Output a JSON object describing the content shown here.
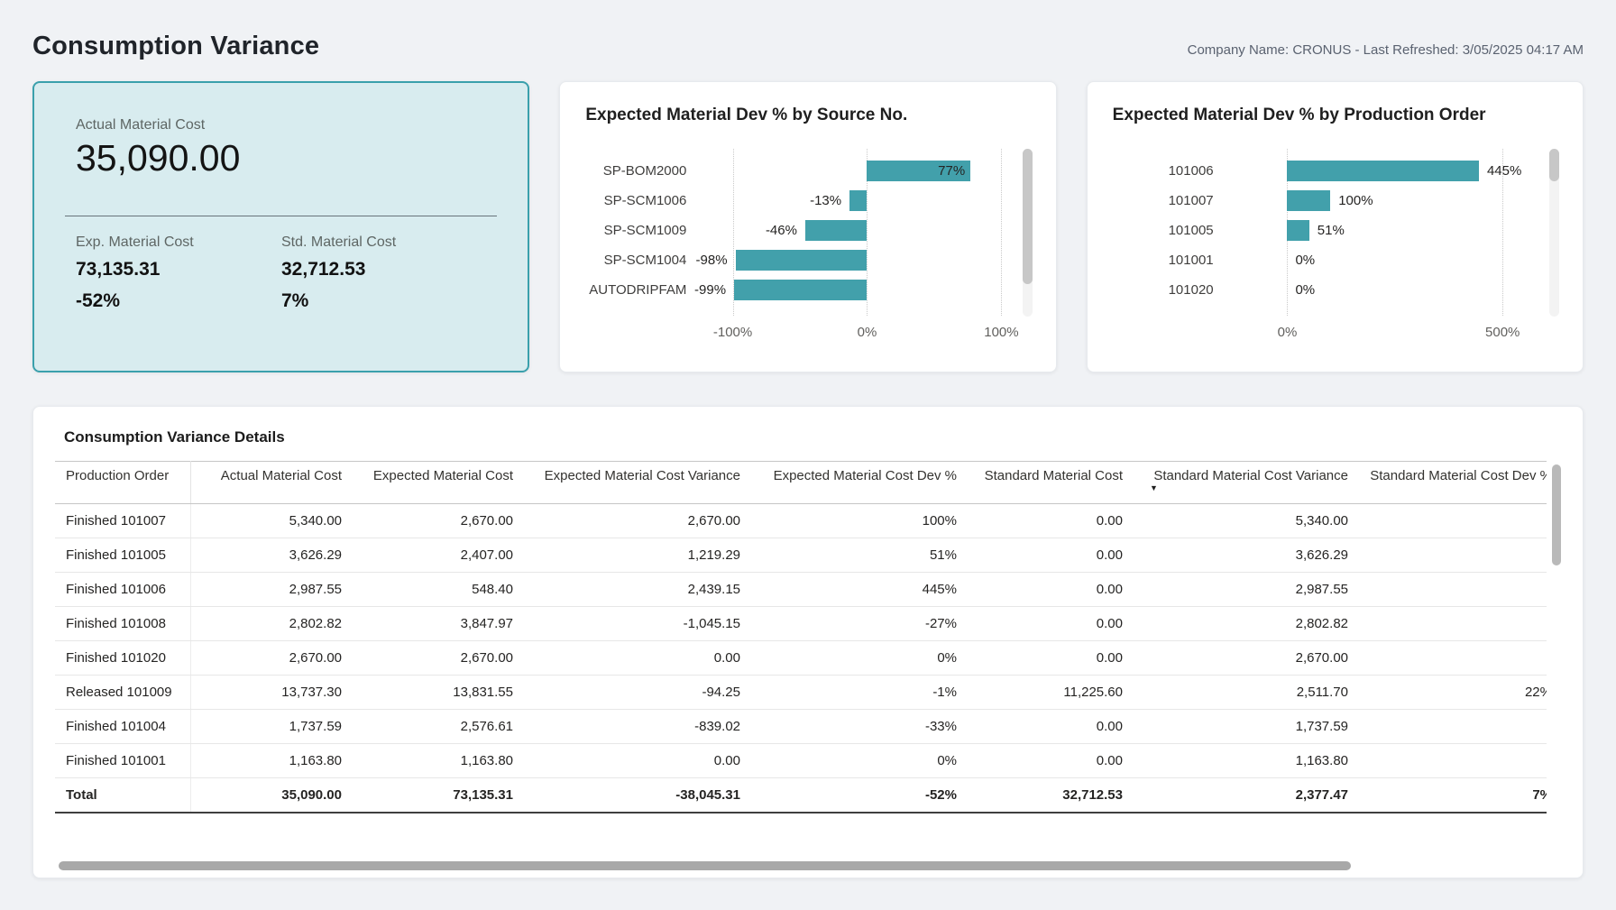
{
  "header": {
    "title": "Consumption Variance",
    "meta": "Company Name: CRONUS - Last Refreshed: 3/05/2025 04:17 AM"
  },
  "colors": {
    "accent_teal": "#42a0ab",
    "kpi_background": "#d8ecef",
    "kpi_border": "#3aa0ac"
  },
  "kpi": {
    "label": "Actual Material Cost",
    "value": "35,090.00",
    "sub": [
      {
        "label": "Exp. Material Cost",
        "value": "73,135.31",
        "pct": "-52%"
      },
      {
        "label": "Std. Material Cost",
        "value": "32,712.53",
        "pct": "7%"
      }
    ]
  },
  "chart_data": [
    {
      "type": "bar",
      "orientation": "horizontal",
      "title": "Expected Material Dev % by Source No.",
      "categories": [
        "SP-BOM2000",
        "SP-SCM1006",
        "SP-SCM1009",
        "SP-SCM1004",
        "AUTODRIPFAM"
      ],
      "values": [
        77,
        -13,
        -46,
        -98,
        -99
      ],
      "labels": [
        "77%",
        "-13%",
        "-46%",
        "-98%",
        "-99%"
      ],
      "xticks": [
        {
          "value": -100,
          "label": "-100%"
        },
        {
          "value": 0,
          "label": "0%"
        },
        {
          "value": 100,
          "label": "100%"
        }
      ],
      "xlim": [
        -125,
        110
      ],
      "xlabel": "",
      "ylabel": "",
      "grid": "dotted-vertical",
      "bar_color": "#42a0ab",
      "scrollbar": "vertical"
    },
    {
      "type": "bar",
      "orientation": "horizontal",
      "title": "Expected Material Dev % by Production Order",
      "categories": [
        "101006",
        "101007",
        "101005",
        "101001",
        "101020"
      ],
      "values": [
        445,
        100,
        51,
        0,
        0
      ],
      "labels": [
        "445%",
        "100%",
        "51%",
        "0%",
        "0%"
      ],
      "xticks": [
        {
          "value": 0,
          "label": "0%"
        },
        {
          "value": 500,
          "label": "500%"
        }
      ],
      "xlim": [
        -142,
        591
      ],
      "xlabel": "",
      "ylabel": "",
      "grid": "dotted-vertical",
      "bar_color": "#42a0ab",
      "scrollbar": "vertical"
    }
  ],
  "table": {
    "title": "Consumption Variance Details",
    "columns": [
      "Production Order",
      "Actual Material Cost",
      "Expected Material Cost",
      "Expected Material Cost Variance",
      "Expected Material Cost Dev %",
      "Standard Material Cost",
      "Standard Material Cost Variance",
      "Standard Material Cost Dev %"
    ],
    "sort_indicator": {
      "column": "Standard Material Cost Variance",
      "direction": "desc",
      "glyph": "▼"
    },
    "rows": [
      [
        "Finished 101007",
        "5,340.00",
        "2,670.00",
        "2,670.00",
        "100%",
        "0.00",
        "5,340.00",
        ""
      ],
      [
        "Finished 101005",
        "3,626.29",
        "2,407.00",
        "1,219.29",
        "51%",
        "0.00",
        "3,626.29",
        ""
      ],
      [
        "Finished 101006",
        "2,987.55",
        "548.40",
        "2,439.15",
        "445%",
        "0.00",
        "2,987.55",
        ""
      ],
      [
        "Finished 101008",
        "2,802.82",
        "3,847.97",
        "-1,045.15",
        "-27%",
        "0.00",
        "2,802.82",
        ""
      ],
      [
        "Finished 101020",
        "2,670.00",
        "2,670.00",
        "0.00",
        "0%",
        "0.00",
        "2,670.00",
        ""
      ],
      [
        "Released 101009",
        "13,737.30",
        "13,831.55",
        "-94.25",
        "-1%",
        "11,225.60",
        "2,511.70",
        "22%"
      ],
      [
        "Finished 101004",
        "1,737.59",
        "2,576.61",
        "-839.02",
        "-33%",
        "0.00",
        "1,737.59",
        ""
      ],
      [
        "Finished 101001",
        "1,163.80",
        "1,163.80",
        "0.00",
        "0%",
        "0.00",
        "1,163.80",
        ""
      ]
    ],
    "total": [
      "Total",
      "35,090.00",
      "73,135.31",
      "-38,045.31",
      "-52%",
      "32,712.53",
      "2,377.47",
      "7%"
    ]
  }
}
